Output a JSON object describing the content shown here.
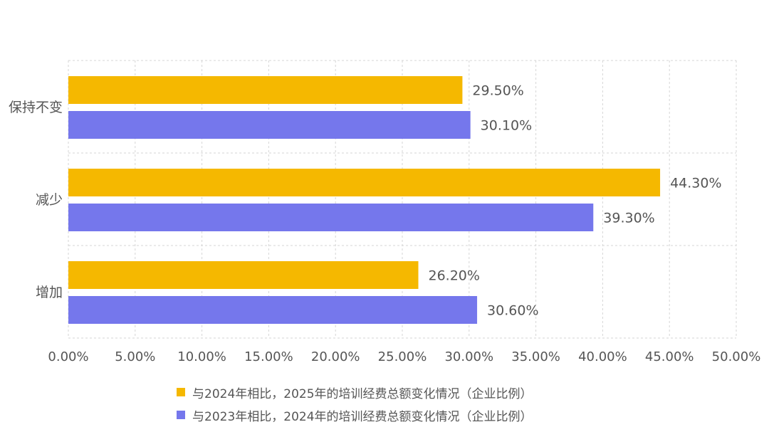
{
  "chart_data": {
    "type": "bar",
    "orientation": "horizontal",
    "categories": [
      "保持不变",
      "减少",
      "增加"
    ],
    "series": [
      {
        "name": "与2024年相比，2025年的培训经费总额变化情况（企业比例）",
        "color": "#F5B800",
        "values": [
          29.5,
          44.3,
          26.2
        ],
        "labels": [
          "29.50%",
          "44.30%",
          "26.20%"
        ]
      },
      {
        "name": "与2023年相比，2024年的培训经费总额变化情况（企业比例）",
        "color": "#7577EC",
        "values": [
          30.1,
          39.3,
          30.6
        ],
        "labels": [
          "30.10%",
          "39.30%",
          "30.60%"
        ]
      }
    ],
    "x_ticks": [
      "0.00%",
      "5.00%",
      "10.00%",
      "15.00%",
      "20.00%",
      "25.00%",
      "30.00%",
      "35.00%",
      "40.00%",
      "45.00%",
      "50.00%"
    ],
    "xlim": [
      0,
      50
    ],
    "grid": true,
    "legend_position": "bottom"
  }
}
